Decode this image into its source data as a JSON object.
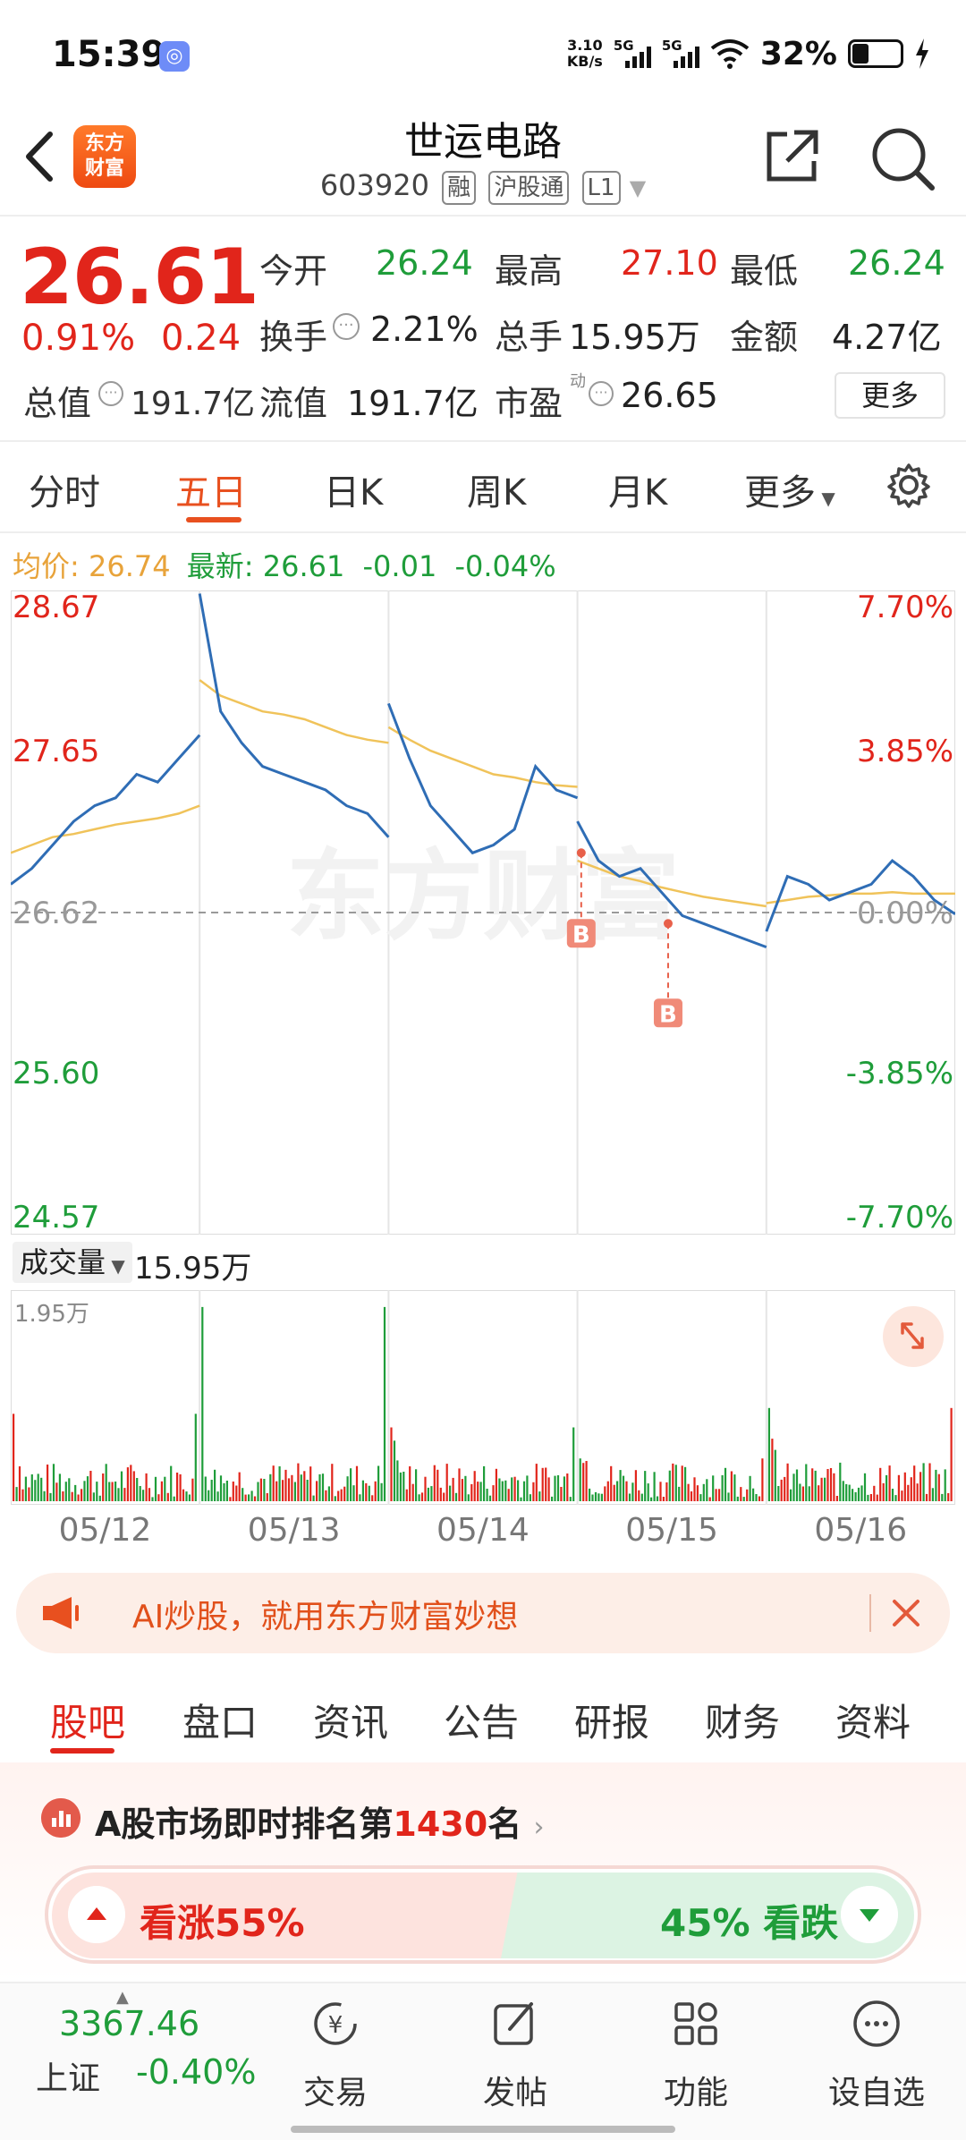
{
  "status_bar": {
    "time": "15:39",
    "net_speed_value": "3.10",
    "net_speed_unit": "KB/s",
    "sim1": "5G",
    "sim2": "5G",
    "battery": "32%"
  },
  "header": {
    "brand_line1": "东方",
    "brand_line2": "财富",
    "stock_name": "世运电路",
    "stock_code": "603920",
    "tags": [
      "融",
      "沪股通",
      "L1"
    ]
  },
  "quote": {
    "price": "26.61",
    "change_pct": "0.91%",
    "change_val": "0.24",
    "rows": [
      [
        {
          "label": "今开",
          "value": "26.24",
          "color": "green"
        },
        {
          "label": "最高",
          "value": "27.10",
          "color": "red"
        },
        {
          "label": "最低",
          "value": "26.24",
          "color": "green"
        }
      ],
      [
        {
          "label": "换手",
          "value": "2.21%",
          "color": "black"
        },
        {
          "label": "总手",
          "value": "15.95万",
          "color": "black"
        },
        {
          "label": "金额",
          "value": "4.27亿",
          "color": "black"
        }
      ]
    ],
    "total_value_label": "总值",
    "total_value": "191.7亿",
    "float_value_label": "流值",
    "float_value": "191.7亿",
    "pe_label": "市盈",
    "pe_sup": "动",
    "pe_value": "26.65",
    "more_label": "更多"
  },
  "k_tabs": [
    "分时",
    "五日",
    "日K",
    "周K",
    "月K",
    "更多"
  ],
  "k_tab_active": "五日",
  "legend": {
    "avg_label": "均价:",
    "avg_value": "26.74",
    "latest_label": "最新:",
    "latest_value": "26.61",
    "latest_change": "-0.01",
    "latest_pct": "-0.04%"
  },
  "chart_data": {
    "type": "line",
    "title": "",
    "x": [
      "05/12",
      "05/13",
      "05/14",
      "05/15",
      "05/16"
    ],
    "y_left_ticks": [
      "28.67",
      "27.65",
      "26.62",
      "25.60",
      "24.57"
    ],
    "y_right_ticks": [
      "7.70%",
      "3.85%",
      "0.00%",
      "-3.85%",
      "-7.70%"
    ],
    "ylim": [
      24.57,
      28.67
    ],
    "reference_price": 26.62,
    "series": [
      {
        "name": "最新",
        "color": "#2f6db5",
        "days": [
          [
            26.8,
            26.9,
            27.05,
            27.2,
            27.3,
            27.35,
            27.5,
            27.45,
            27.6,
            27.75
          ],
          [
            28.65,
            27.9,
            27.7,
            27.55,
            27.5,
            27.45,
            27.4,
            27.3,
            27.25,
            27.1
          ],
          [
            27.95,
            27.6,
            27.3,
            27.15,
            27.0,
            27.05,
            27.15,
            27.55,
            27.4,
            27.35
          ],
          [
            27.2,
            26.95,
            26.85,
            26.9,
            26.75,
            26.6,
            26.55,
            26.5,
            26.45,
            26.4
          ],
          [
            26.5,
            26.85,
            26.8,
            26.7,
            26.75,
            26.8,
            26.95,
            26.85,
            26.7,
            26.61
          ]
        ]
      },
      {
        "name": "均价",
        "color": "#f0c35a",
        "days": [
          [
            27.0,
            27.05,
            27.1,
            27.12,
            27.15,
            27.18,
            27.2,
            27.22,
            27.25,
            27.3
          ],
          [
            28.1,
            28.0,
            27.95,
            27.9,
            27.88,
            27.85,
            27.8,
            27.75,
            27.72,
            27.7
          ],
          [
            27.8,
            27.72,
            27.65,
            27.6,
            27.55,
            27.5,
            27.48,
            27.45,
            27.43,
            27.42
          ],
          [
            26.95,
            26.9,
            26.85,
            26.82,
            26.78,
            26.75,
            26.72,
            26.7,
            26.68,
            26.66
          ],
          [
            26.68,
            26.7,
            26.72,
            26.73,
            26.74,
            26.74,
            26.75,
            26.74,
            26.74,
            26.74
          ]
        ]
      }
    ],
    "buy_marks": [
      {
        "label": "B",
        "day": 3,
        "step": 0.02,
        "price": 27.0
      },
      {
        "label": "B",
        "day": 3,
        "step": 0.48,
        "price": 26.55
      }
    ],
    "watermark": "东方财富",
    "volume_label": "成交量",
    "volume_total": "15.95万",
    "volume_max": "1.95万",
    "volume_spikes": [
      0.45,
      1.0,
      0.38,
      0.22,
      0.48
    ]
  },
  "ai_banner": {
    "text": "AI炒股，就用东方财富妙想"
  },
  "bottom_tabs": [
    "股吧",
    "盘口",
    "资讯",
    "公告",
    "研报",
    "财务",
    "资料"
  ],
  "bottom_tab_active": "股吧",
  "ranking": {
    "prefix": "A股市场即时排名第",
    "rank": "1430",
    "suffix": "名"
  },
  "vote": {
    "up_label": "看涨",
    "up_pct": "55%",
    "down_pct": "45%",
    "down_label": "看跌"
  },
  "bottom_nav": {
    "index_value": "3367.46",
    "index_name": "上证",
    "index_change": "-0.40%",
    "items": [
      "交易",
      "发帖",
      "功能",
      "设自选"
    ]
  }
}
